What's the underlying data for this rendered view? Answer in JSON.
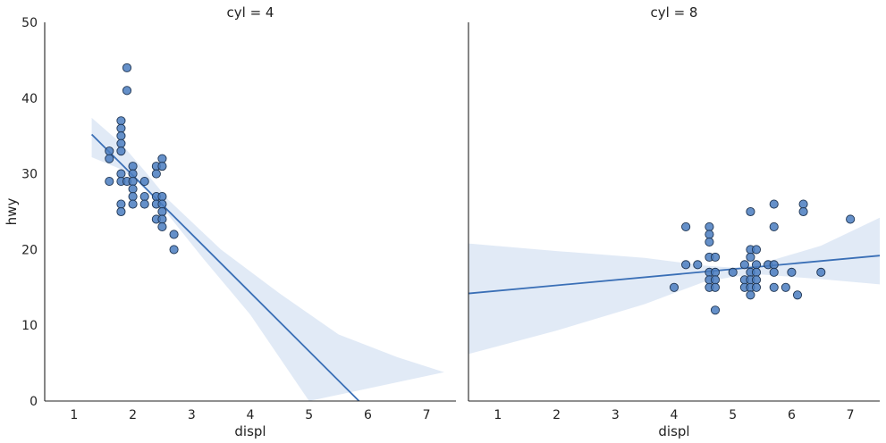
{
  "chart_data": [
    {
      "type": "scatter",
      "title": "cyl = 4",
      "xlabel": "displ",
      "ylabel": "hwy",
      "xlim": [
        0.5,
        7.5
      ],
      "ylim": [
        0,
        50
      ],
      "xticks": [
        1,
        2,
        3,
        4,
        5,
        6,
        7
      ],
      "yticks": [
        0,
        10,
        20,
        30,
        40,
        50
      ],
      "grid": false,
      "color": "#4a7cc0",
      "points": [
        [
          1.6,
          33
        ],
        [
          1.6,
          32
        ],
        [
          1.6,
          29
        ],
        [
          1.8,
          37
        ],
        [
          1.8,
          36
        ],
        [
          1.8,
          35
        ],
        [
          1.8,
          34
        ],
        [
          1.8,
          33
        ],
        [
          1.8,
          30
        ],
        [
          1.8,
          29
        ],
        [
          1.8,
          26
        ],
        [
          1.8,
          25
        ],
        [
          1.9,
          44
        ],
        [
          1.9,
          41
        ],
        [
          1.9,
          29
        ],
        [
          2.0,
          31
        ],
        [
          2.0,
          30
        ],
        [
          2.0,
          29
        ],
        [
          2.0,
          28
        ],
        [
          2.0,
          27
        ],
        [
          2.0,
          26
        ],
        [
          2.2,
          29
        ],
        [
          2.2,
          27
        ],
        [
          2.2,
          26
        ],
        [
          2.4,
          31
        ],
        [
          2.4,
          30
        ],
        [
          2.4,
          27
        ],
        [
          2.4,
          26
        ],
        [
          2.4,
          24
        ],
        [
          2.5,
          32
        ],
        [
          2.5,
          31
        ],
        [
          2.5,
          27
        ],
        [
          2.5,
          26
        ],
        [
          2.5,
          25
        ],
        [
          2.5,
          24
        ],
        [
          2.5,
          23
        ],
        [
          2.7,
          22
        ],
        [
          2.7,
          20
        ]
      ],
      "regression": {
        "line": [
          [
            1.3,
            35.2
          ],
          [
            5.85,
            0
          ]
        ],
        "ci_upper": [
          [
            1.3,
            37.4
          ],
          [
            1.8,
            34.0
          ],
          [
            2.2,
            30.4
          ],
          [
            2.6,
            26.6
          ],
          [
            3.5,
            20.0
          ],
          [
            4.5,
            14.2
          ],
          [
            5.5,
            8.8
          ],
          [
            6.5,
            5.8
          ],
          [
            7.3,
            3.8
          ]
        ],
        "ci_lower": [
          [
            1.3,
            32.2
          ],
          [
            1.8,
            30.6
          ],
          [
            2.2,
            28.2
          ],
          [
            2.6,
            24.6
          ],
          [
            3.2,
            18.8
          ],
          [
            4.0,
            11.4
          ],
          [
            5.0,
            0
          ]
        ]
      }
    },
    {
      "type": "scatter",
      "title": "cyl = 8",
      "xlabel": "displ",
      "ylabel": "",
      "xlim": [
        0.5,
        7.5
      ],
      "ylim": [
        0,
        50
      ],
      "xticks": [
        1,
        2,
        3,
        4,
        5,
        6,
        7
      ],
      "yticks": [],
      "grid": false,
      "color": "#4a7cc0",
      "points": [
        [
          4.0,
          15
        ],
        [
          4.2,
          23
        ],
        [
          4.2,
          18
        ],
        [
          4.4,
          18
        ],
        [
          4.6,
          23
        ],
        [
          4.6,
          22
        ],
        [
          4.6,
          21
        ],
        [
          4.6,
          19
        ],
        [
          4.6,
          17
        ],
        [
          4.6,
          16
        ],
        [
          4.6,
          15
        ],
        [
          4.7,
          19
        ],
        [
          4.7,
          17
        ],
        [
          4.7,
          16
        ],
        [
          4.7,
          15
        ],
        [
          4.7,
          12
        ],
        [
          5.0,
          17
        ],
        [
          5.2,
          18
        ],
        [
          5.2,
          16
        ],
        [
          5.2,
          15
        ],
        [
          5.3,
          25
        ],
        [
          5.3,
          20
        ],
        [
          5.3,
          19
        ],
        [
          5.3,
          17
        ],
        [
          5.3,
          16
        ],
        [
          5.3,
          15
        ],
        [
          5.3,
          14
        ],
        [
          5.4,
          20
        ],
        [
          5.4,
          18
        ],
        [
          5.4,
          17
        ],
        [
          5.4,
          16
        ],
        [
          5.4,
          15
        ],
        [
          5.6,
          18
        ],
        [
          5.7,
          26
        ],
        [
          5.7,
          23
        ],
        [
          5.7,
          18
        ],
        [
          5.7,
          17
        ],
        [
          5.7,
          15
        ],
        [
          5.9,
          15
        ],
        [
          6.0,
          17
        ],
        [
          6.1,
          14
        ],
        [
          6.2,
          26
        ],
        [
          6.2,
          25
        ],
        [
          6.5,
          17
        ],
        [
          7.0,
          24
        ]
      ],
      "regression": {
        "line": [
          [
            0.5,
            14.2
          ],
          [
            7.5,
            19.2
          ]
        ],
        "ci_upper": [
          [
            0.5,
            20.8
          ],
          [
            2.0,
            19.8
          ],
          [
            3.5,
            18.9
          ],
          [
            4.5,
            17.9
          ],
          [
            5.0,
            17.6
          ],
          [
            5.5,
            18.2
          ],
          [
            6.5,
            20.5
          ],
          [
            7.5,
            24.2
          ]
        ],
        "ci_lower": [
          [
            0.5,
            6.2
          ],
          [
            2.0,
            9.3
          ],
          [
            3.5,
            12.8
          ],
          [
            4.5,
            15.7
          ],
          [
            5.0,
            16.4
          ],
          [
            5.5,
            16.7
          ],
          [
            6.5,
            16.1
          ],
          [
            7.5,
            15.4
          ]
        ]
      }
    }
  ]
}
